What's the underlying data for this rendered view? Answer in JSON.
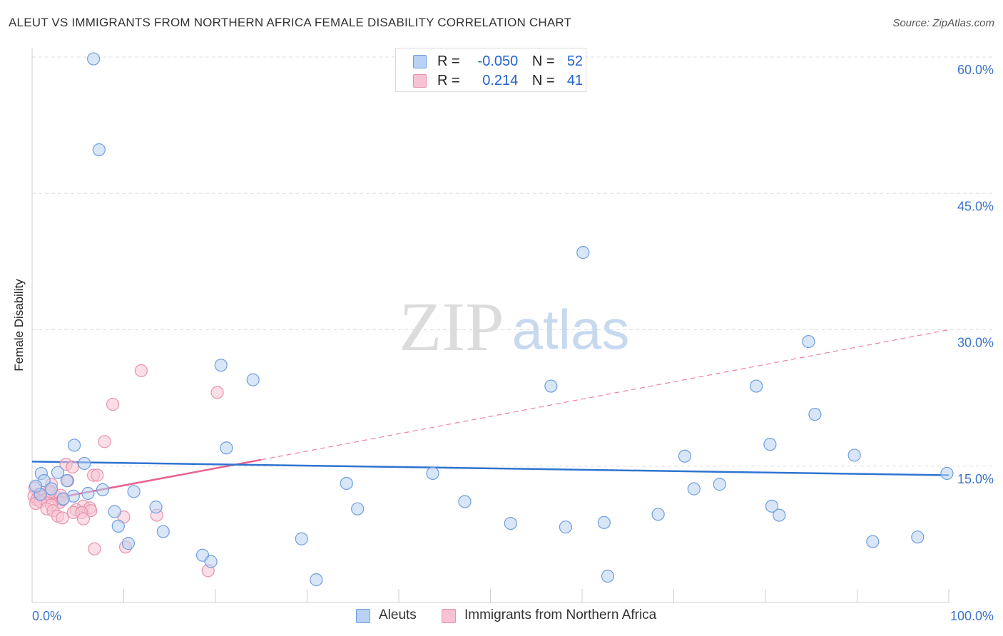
{
  "title": "ALEUT VS IMMIGRANTS FROM NORTHERN AFRICA FEMALE DISABILITY CORRELATION CHART",
  "source": "Source: ZipAtlas.com",
  "watermark": {
    "zip": "ZIP",
    "atlas": "atlas"
  },
  "legend_top": {
    "aleut": {
      "r_label": "R =",
      "r_value": "-0.050",
      "n_label": "N =",
      "n_value": "52"
    },
    "immigrants": {
      "r_label": "R =",
      "r_value": "0.214",
      "n_label": "N =",
      "n_value": "41"
    }
  },
  "colors": {
    "aleut_fill": "#b9d2f3",
    "aleut_stroke": "#6e9ede",
    "aleut_line": "#2f74d0",
    "immig_fill": "#f7c2d2",
    "immig_stroke": "#e892ac",
    "immig_line": "#e8628f",
    "tick_label": "#3b73c9",
    "grid": "#dddddd"
  },
  "chart_data": {
    "type": "scatter",
    "title": "ALEUT VS IMMIGRANTS FROM NORTHERN AFRICA FEMALE DISABILITY CORRELATION CHART",
    "xlabel": "",
    "ylabel": "Female Disability",
    "xlim": [
      0,
      100
    ],
    "ylim": [
      0,
      60
    ],
    "x_tick_labels": [
      "0.0%",
      "100.0%"
    ],
    "y_ticks": [
      15,
      30,
      45,
      60
    ],
    "y_tick_labels": [
      "15.0%",
      "30.0%",
      "45.0%",
      "60.0%"
    ],
    "series": [
      {
        "name": "Aleuts",
        "r": -0.05,
        "n": 52,
        "trend": {
          "x": [
            0,
            100
          ],
          "y": [
            15.5,
            14.0
          ]
        },
        "points": [
          [
            6.7,
            59.8
          ],
          [
            7.3,
            49.8
          ],
          [
            60.1,
            38.5
          ],
          [
            84.7,
            28.7
          ],
          [
            20.6,
            26.1
          ],
          [
            24.1,
            24.5
          ],
          [
            56.6,
            23.8
          ],
          [
            79.0,
            23.8
          ],
          [
            85.4,
            20.7
          ],
          [
            4.6,
            17.3
          ],
          [
            21.2,
            17.0
          ],
          [
            80.5,
            17.4
          ],
          [
            89.7,
            16.2
          ],
          [
            71.2,
            16.1
          ],
          [
            5.7,
            15.3
          ],
          [
            1.0,
            14.2
          ],
          [
            2.8,
            14.3
          ],
          [
            43.7,
            14.2
          ],
          [
            99.8,
            14.2
          ],
          [
            1.3,
            13.4
          ],
          [
            3.8,
            13.4
          ],
          [
            34.3,
            13.1
          ],
          [
            75.0,
            13.0
          ],
          [
            2.1,
            12.5
          ],
          [
            7.7,
            12.4
          ],
          [
            11.1,
            12.2
          ],
          [
            72.2,
            12.5
          ],
          [
            6.1,
            12.0
          ],
          [
            0.9,
            11.9
          ],
          [
            4.5,
            11.7
          ],
          [
            3.4,
            11.4
          ],
          [
            47.2,
            11.1
          ],
          [
            80.7,
            10.6
          ],
          [
            13.5,
            10.5
          ],
          [
            35.5,
            10.3
          ],
          [
            9.0,
            10.0
          ],
          [
            68.3,
            9.7
          ],
          [
            81.5,
            9.6
          ],
          [
            52.2,
            8.7
          ],
          [
            62.4,
            8.8
          ],
          [
            9.4,
            8.4
          ],
          [
            58.2,
            8.3
          ],
          [
            14.3,
            7.8
          ],
          [
            10.5,
            6.5
          ],
          [
            29.4,
            7.0
          ],
          [
            91.7,
            6.7
          ],
          [
            96.6,
            7.2
          ],
          [
            18.6,
            5.2
          ],
          [
            19.5,
            4.5
          ],
          [
            31.0,
            2.5
          ],
          [
            62.8,
            2.9
          ],
          [
            0.4,
            12.8
          ]
        ]
      },
      {
        "name": "Immigrants from Northern Africa",
        "r": 0.214,
        "n": 41,
        "trend_solid": {
          "x": [
            0,
            25
          ],
          "y": [
            11.0,
            15.7
          ]
        },
        "trend_dashed": {
          "x": [
            25,
            100
          ],
          "y": [
            15.7,
            30.0
          ]
        },
        "points": [
          [
            11.9,
            25.5
          ],
          [
            20.2,
            23.1
          ],
          [
            8.8,
            21.8
          ],
          [
            7.9,
            17.7
          ],
          [
            3.7,
            15.2
          ],
          [
            4.4,
            14.9
          ],
          [
            6.7,
            14.0
          ],
          [
            7.1,
            14.0
          ],
          [
            3.9,
            13.4
          ],
          [
            2.1,
            13.0
          ],
          [
            0.3,
            12.6
          ],
          [
            1.8,
            12.2
          ],
          [
            0.7,
            11.9
          ],
          [
            0.2,
            11.7
          ],
          [
            1.2,
            11.6
          ],
          [
            2.6,
            11.6
          ],
          [
            3.1,
            11.8
          ],
          [
            0.5,
            11.3
          ],
          [
            1.4,
            11.3
          ],
          [
            0.9,
            11.1
          ],
          [
            3.0,
            11.0
          ],
          [
            3.3,
            11.3
          ],
          [
            0.4,
            10.9
          ],
          [
            2.1,
            10.7
          ],
          [
            5.6,
            10.6
          ],
          [
            6.3,
            10.4
          ],
          [
            4.8,
            10.2
          ],
          [
            1.6,
            10.3
          ],
          [
            2.3,
            10.1
          ],
          [
            6.4,
            10.1
          ],
          [
            4.5,
            9.9
          ],
          [
            5.4,
            9.9
          ],
          [
            13.6,
            9.6
          ],
          [
            2.8,
            9.5
          ],
          [
            10.0,
            9.4
          ],
          [
            3.3,
            9.3
          ],
          [
            5.6,
            9.2
          ],
          [
            6.8,
            5.9
          ],
          [
            10.2,
            6.1
          ],
          [
            19.2,
            3.5
          ],
          [
            2.0,
            12.2
          ]
        ]
      }
    ]
  },
  "bottom_legend": {
    "aleut": "Aleuts",
    "immigrants": "Immigrants from Northern Africa"
  }
}
